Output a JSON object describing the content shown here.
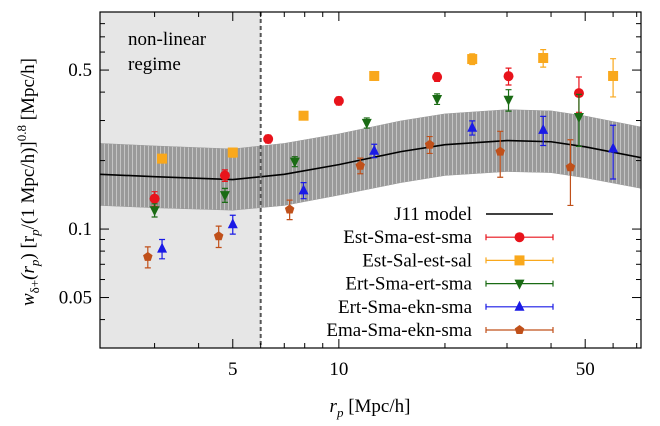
{
  "chart_data": {
    "type": "scatter",
    "xlabel_parts": [
      "r",
      "p",
      " [Mpc/h]"
    ],
    "ylabel_parts": [
      "w",
      "δ+",
      "(r",
      "p",
      ") [r",
      "p",
      "/(1 Mpc/h)]",
      "0.8",
      " [Mpc/h]"
    ],
    "annotation": [
      "non-linear",
      "regime"
    ],
    "nonlinear_limit": 6,
    "xlim": [
      2.1,
      72
    ],
    "ylim": [
      0.03,
      0.9
    ],
    "xscale": "log",
    "yscale": "log",
    "xticks": [
      5,
      10,
      50
    ],
    "yticks": [
      0.05,
      0.1,
      0.5
    ],
    "xminorticks": [
      3,
      4,
      6,
      7,
      8,
      9,
      20,
      30,
      40,
      60,
      70
    ],
    "yminorticks": [
      0.04,
      0.06,
      0.07,
      0.08,
      0.09,
      0.2,
      0.3,
      0.4,
      0.6,
      0.7,
      0.8
    ],
    "model": {
      "name": "J11 model",
      "color": "#000000",
      "band_color": "#999999",
      "x": [
        2.1,
        3,
        5,
        7,
        10,
        15,
        20,
        30,
        40,
        50,
        72
      ],
      "values": [
        0.174,
        0.17,
        0.165,
        0.174,
        0.192,
        0.219,
        0.235,
        0.245,
        0.242,
        0.23,
        0.206
      ],
      "band_low": [
        0.127,
        0.124,
        0.121,
        0.127,
        0.141,
        0.16,
        0.172,
        0.179,
        0.177,
        0.168,
        0.151
      ],
      "band_high": [
        0.238,
        0.232,
        0.225,
        0.238,
        0.262,
        0.299,
        0.321,
        0.335,
        0.331,
        0.314,
        0.281
      ]
    },
    "series": [
      {
        "name": "Est-Sma-est-sma",
        "color": "#e8131b",
        "marker": "circle",
        "x": [
          3.0,
          4.75,
          6.3,
          10.0,
          19.0,
          30.3,
          48
        ],
        "values": [
          0.136,
          0.172,
          0.249,
          0.366,
          0.466,
          0.47,
          0.396
        ],
        "errors": [
          0.01,
          0.01,
          0.01,
          0.015,
          0.02,
          0.04,
          0.07
        ]
      },
      {
        "name": "Est-Sal-est-sal",
        "color": "#f9a81c",
        "marker": "square",
        "x": [
          3.15,
          5.0,
          7.94,
          12.6,
          23.9,
          38,
          60
        ],
        "values": [
          0.204,
          0.217,
          0.315,
          0.471,
          0.559,
          0.565,
          0.471
        ],
        "errors": [
          0.008,
          0.01,
          0.012,
          0.02,
          0.03,
          0.05,
          0.09
        ]
      },
      {
        "name": "Ert-Sma-ert-sma",
        "color": "#1a6b14",
        "marker": "triangle-down",
        "x": [
          3.0,
          4.75,
          7.5,
          12.0,
          19.0,
          30.3,
          48
        ],
        "values": [
          0.121,
          0.141,
          0.198,
          0.293,
          0.373,
          0.37,
          0.311
        ],
        "errors": [
          0.008,
          0.01,
          0.01,
          0.015,
          0.02,
          0.04,
          0.08
        ]
      },
      {
        "name": "Ert-Sma-ekn-sma",
        "color": "#1a1ae6",
        "marker": "triangle-up",
        "x": [
          3.15,
          5.0,
          7.94,
          12.6,
          23.9,
          38,
          60
        ],
        "values": [
          0.082,
          0.105,
          0.148,
          0.221,
          0.279,
          0.273,
          0.226
        ],
        "errors": [
          0.008,
          0.01,
          0.012,
          0.015,
          0.02,
          0.04,
          0.06
        ]
      },
      {
        "name": "Ema-Sma-ekn-sma",
        "color": "#c0501a",
        "marker": "pentagon",
        "x": [
          2.87,
          4.56,
          7.25,
          11.5,
          18.1,
          28.7,
          45.4
        ],
        "values": [
          0.0755,
          0.093,
          0.122,
          0.19,
          0.235,
          0.219,
          0.187
        ],
        "errors": [
          0.008,
          0.01,
          0.012,
          0.015,
          0.02,
          0.05,
          0.06
        ]
      }
    ]
  }
}
